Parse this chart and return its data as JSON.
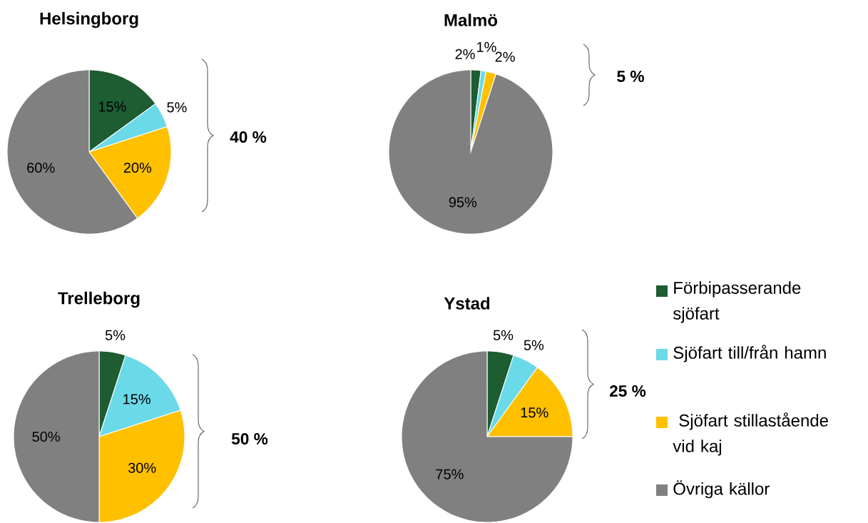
{
  "chart_data": [
    {
      "type": "pie",
      "title": "Helsingborg",
      "categories": [
        null,
        null,
        null,
        null
      ],
      "values": [
        15,
        5,
        20,
        60
      ],
      "value_labels": [
        "15%",
        "5%",
        "20%",
        "60%"
      ],
      "colors": [
        "#1e5c32",
        "#6ad9e8",
        "#ffc000",
        "#808080"
      ],
      "annotations": [
        "40 %"
      ]
    },
    {
      "type": "pie",
      "title": "Malmö",
      "categories": [
        null,
        null,
        null,
        null
      ],
      "values": [
        2,
        1,
        2,
        95
      ],
      "value_labels": [
        "2%",
        "1%",
        "2%",
        "95%"
      ],
      "colors": [
        "#1e5c32",
        "#6ad9e8",
        "#ffc000",
        "#808080"
      ],
      "annotations": [
        "5 %"
      ]
    },
    {
      "type": "pie",
      "title": "Trelleborg",
      "categories": [
        null,
        null,
        null,
        null
      ],
      "values": [
        5,
        15,
        30,
        50
      ],
      "value_labels": [
        "5%",
        "15%",
        "30%",
        "50%"
      ],
      "colors": [
        "#1e5c32",
        "#6ad9e8",
        "#ffc000",
        "#808080"
      ],
      "annotations": [
        "50 %"
      ]
    },
    {
      "type": "pie",
      "title": "Ystad",
      "categories": [
        "Förbipasserande sjöfart",
        "Sjöfart till/från hamn",
        " Sjöfart stillastående vid kaj",
        "Övriga källor"
      ],
      "values": [
        5,
        5,
        15,
        75
      ],
      "value_labels": [
        "5%",
        "5%",
        "15%",
        "75%"
      ],
      "colors": [
        "#1e5c32",
        "#6ad9e8",
        "#ffc000",
        "#808080"
      ],
      "annotations": [
        "25 %"
      ],
      "legend": "right"
    }
  ]
}
